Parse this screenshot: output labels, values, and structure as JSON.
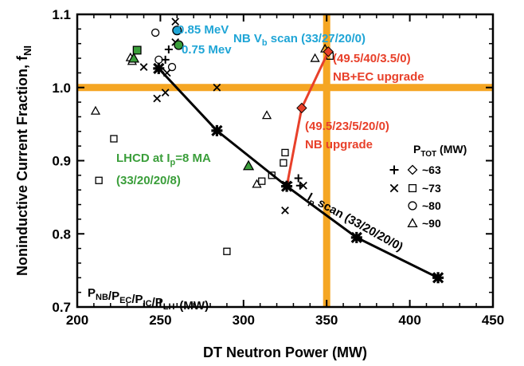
{
  "chart_data": {
    "type": "scatter",
    "xlabel": "DT Neutron Power (MW)",
    "ylabel": "Noninductive Current Fraction, f",
    "ylabel_sub": "NI",
    "xlim": [
      200,
      450
    ],
    "ylim": [
      0.7,
      1.1
    ],
    "xticks": [
      "200",
      "250",
      "300",
      "350",
      "400",
      "450"
    ],
    "yticks": [
      "0.7",
      "0.8",
      "0.9",
      "1.0",
      "1.1"
    ],
    "xtick_values": [
      200,
      250,
      300,
      350,
      400,
      450
    ],
    "ytick_values": [
      0.7,
      0.8,
      0.9,
      1.0,
      1.1
    ],
    "reference_lines": {
      "y": 1.0,
      "x": 350,
      "color": "#f5a623"
    },
    "series": [
      {
        "name": "",
        "kind": "line",
        "color": "#000000",
        "x": [
          249,
          284,
          326,
          368,
          417
        ],
        "y": [
          1.026,
          0.941,
          0.865,
          0.795,
          0.74
        ]
      },
      {
        "name": "",
        "kind": "line",
        "color": "#e8402a",
        "x": [
          326,
          335,
          351
        ],
        "y": [
          0.865,
          0.972,
          1.049
        ]
      }
    ],
    "scatter_points": [
      {
        "m": "plus",
        "x": 253,
        "y": 1.038
      },
      {
        "m": "plus",
        "x": 255,
        "y": 1.052
      },
      {
        "m": "plus",
        "x": 327,
        "y": 0.87
      },
      {
        "m": "plus",
        "x": 333,
        "y": 0.876
      },
      {
        "m": "plus",
        "x": 334,
        "y": 0.866
      },
      {
        "m": "cross",
        "x": 240,
        "y": 1.028
      },
      {
        "m": "cross",
        "x": 248,
        "y": 0.985
      },
      {
        "m": "cross",
        "x": 253,
        "y": 0.993
      },
      {
        "m": "cross",
        "x": 254,
        "y": 1.02
      },
      {
        "m": "cross",
        "x": 259,
        "y": 1.09
      },
      {
        "m": "cross",
        "x": 259,
        "y": 1.062
      },
      {
        "m": "cross",
        "x": 284,
        "y": 1.0
      },
      {
        "m": "cross",
        "x": 325,
        "y": 0.832
      },
      {
        "m": "cross",
        "x": 336,
        "y": 0.866
      },
      {
        "m": "square",
        "x": 213,
        "y": 0.873
      },
      {
        "m": "square",
        "x": 222,
        "y": 0.93
      },
      {
        "m": "square",
        "x": 290,
        "y": 0.776
      },
      {
        "m": "square",
        "x": 311,
        "y": 0.872
      },
      {
        "m": "square",
        "x": 317,
        "y": 0.88
      },
      {
        "m": "square",
        "x": 324,
        "y": 0.897
      },
      {
        "m": "square",
        "x": 325,
        "y": 0.911
      },
      {
        "m": "square",
        "x": 352,
        "y": 1.043
      },
      {
        "m": "circle",
        "x": 247,
        "y": 1.075
      },
      {
        "m": "circle",
        "x": 249,
        "y": 1.038
      },
      {
        "m": "circle",
        "x": 257,
        "y": 1.028
      },
      {
        "m": "triangle",
        "x": 211,
        "y": 0.968
      },
      {
        "m": "triangle",
        "x": 232,
        "y": 1.041
      },
      {
        "m": "triangle",
        "x": 233,
        "y": 1.036
      },
      {
        "m": "triangle",
        "x": 308,
        "y": 0.868
      },
      {
        "m": "triangle",
        "x": 314,
        "y": 0.962
      },
      {
        "m": "triangle",
        "x": 343,
        "y": 1.04
      },
      {
        "m": "triangle",
        "x": 349,
        "y": 1.053
      }
    ],
    "highlighted_points": [
      {
        "m": "circle",
        "color": "#1fa5d6",
        "x": 260,
        "y": 1.078
      },
      {
        "m": "circle",
        "color": "#3a9e3a",
        "x": 261,
        "y": 1.058
      },
      {
        "m": "square",
        "color": "#3a9e3a",
        "x": 236,
        "y": 1.051
      },
      {
        "m": "triangle",
        "color": "#3a9e3a",
        "x": 234,
        "y": 1.04
      },
      {
        "m": "triangle",
        "color": "#3a9e3a",
        "x": 303,
        "y": 0.893
      }
    ],
    "annotations": [
      {
        "text": "0.85 MeV",
        "color": "#1fa5d6"
      },
      {
        "text": "0.75 Mev",
        "color": "#1fa5d6"
      },
      {
        "text": "NB V",
        "sub": "b",
        "rest": " scan (33/27/20/0)",
        "color": "#1fa5d6"
      },
      {
        "text": "(49.5/40/3.5/0)",
        "color": "#e8402a"
      },
      {
        "text": "NB+EC upgrade",
        "color": "#e8402a"
      },
      {
        "text": "(49.5/23/5/20/0)",
        "color": "#e8402a"
      },
      {
        "text": "NB upgrade",
        "color": "#e8402a"
      },
      {
        "text": "LHCD at I",
        "sub": "p",
        "rest": "=8 MA",
        "color": "#3a9e3a"
      },
      {
        "text": "(33/20/20/8)",
        "color": "#3a9e3a"
      },
      {
        "text": "I",
        "sub": "p",
        "rest": " scan (33/20/20/0)",
        "color": "#000000"
      }
    ],
    "bottom_label": {
      "parts": [
        {
          "t": "P",
          "s": "NB"
        },
        {
          "t": "/P",
          "s": "EC"
        },
        {
          "t": "/P",
          "s": "IC"
        },
        {
          "t": "/P",
          "s": "LH"
        },
        {
          "t": "(MW)",
          "s": ""
        }
      ]
    },
    "legend": {
      "title": "P",
      "title_sub": "TOT",
      "title_rest": " (MW)",
      "placement": "right",
      "entries": [
        {
          "markers": [
            "plus",
            "diamond"
          ],
          "label": "~63"
        },
        {
          "markers": [
            "cross",
            "square"
          ],
          "label": "~73"
        },
        {
          "markers": [
            "circle"
          ],
          "label": "~80"
        },
        {
          "markers": [
            "triangle"
          ],
          "label": "~90"
        }
      ]
    },
    "grid": false
  }
}
